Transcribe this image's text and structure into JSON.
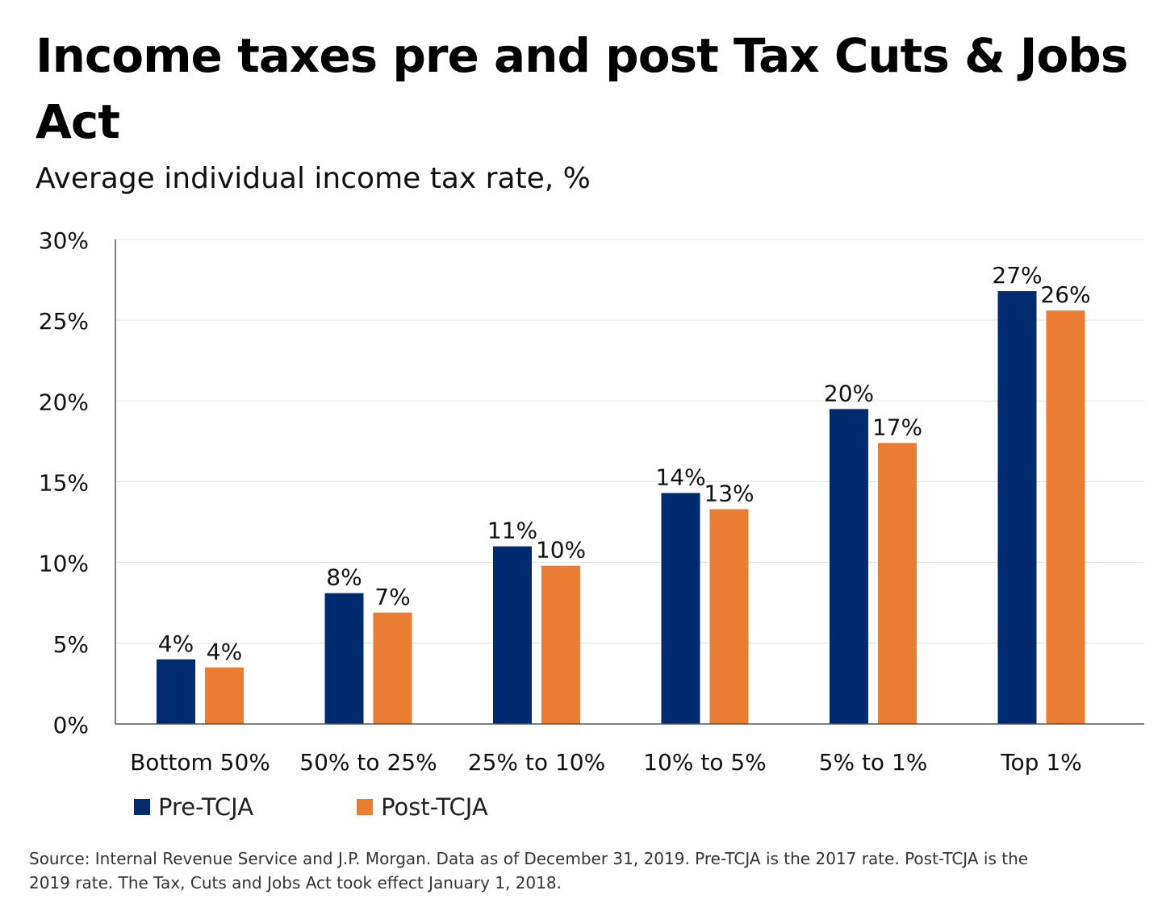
{
  "chart_data": {
    "type": "bar",
    "title": "Income taxes pre and post Tax Cuts & Jobs Act",
    "subtitle": "Average individual income tax rate, %",
    "categories": [
      "Bottom 50%",
      "50% to 25%",
      "25% to 10%",
      "10% to 5%",
      "5% to 1%",
      "Top 1%"
    ],
    "series": [
      {
        "name": "Pre-TCJA",
        "color": "#002b6e",
        "values": [
          4.0,
          8.1,
          11.0,
          14.3,
          19.5,
          26.8
        ],
        "labels": [
          "4%",
          "8%",
          "11%",
          "14%",
          "20%",
          "27%"
        ]
      },
      {
        "name": "Post-TCJA",
        "color": "#ea7d34",
        "values": [
          3.5,
          6.9,
          9.8,
          13.3,
          17.4,
          25.6
        ],
        "labels": [
          "4%",
          "7%",
          "10%",
          "13%",
          "17%",
          "26%"
        ]
      }
    ],
    "ylim": [
      0,
      30
    ],
    "yticks": [
      0,
      5,
      10,
      15,
      20,
      25,
      30
    ],
    "ytick_labels": [
      "0%",
      "5%",
      "10%",
      "15%",
      "20%",
      "25%",
      "30%"
    ],
    "xlabel": "",
    "ylabel": "",
    "grid": true,
    "legend_position": "bottom-left"
  },
  "legend": {
    "pre": "Pre-TCJA",
    "post": "Post-TCJA"
  },
  "source_note": "Source: Internal Revenue Service and J.P. Morgan. Data as of December 31, 2019. Pre-TCJA is the 2017 rate. Post-TCJA is the 2019 rate. The Tax, Cuts and Jobs Act took effect January 1, 2018."
}
